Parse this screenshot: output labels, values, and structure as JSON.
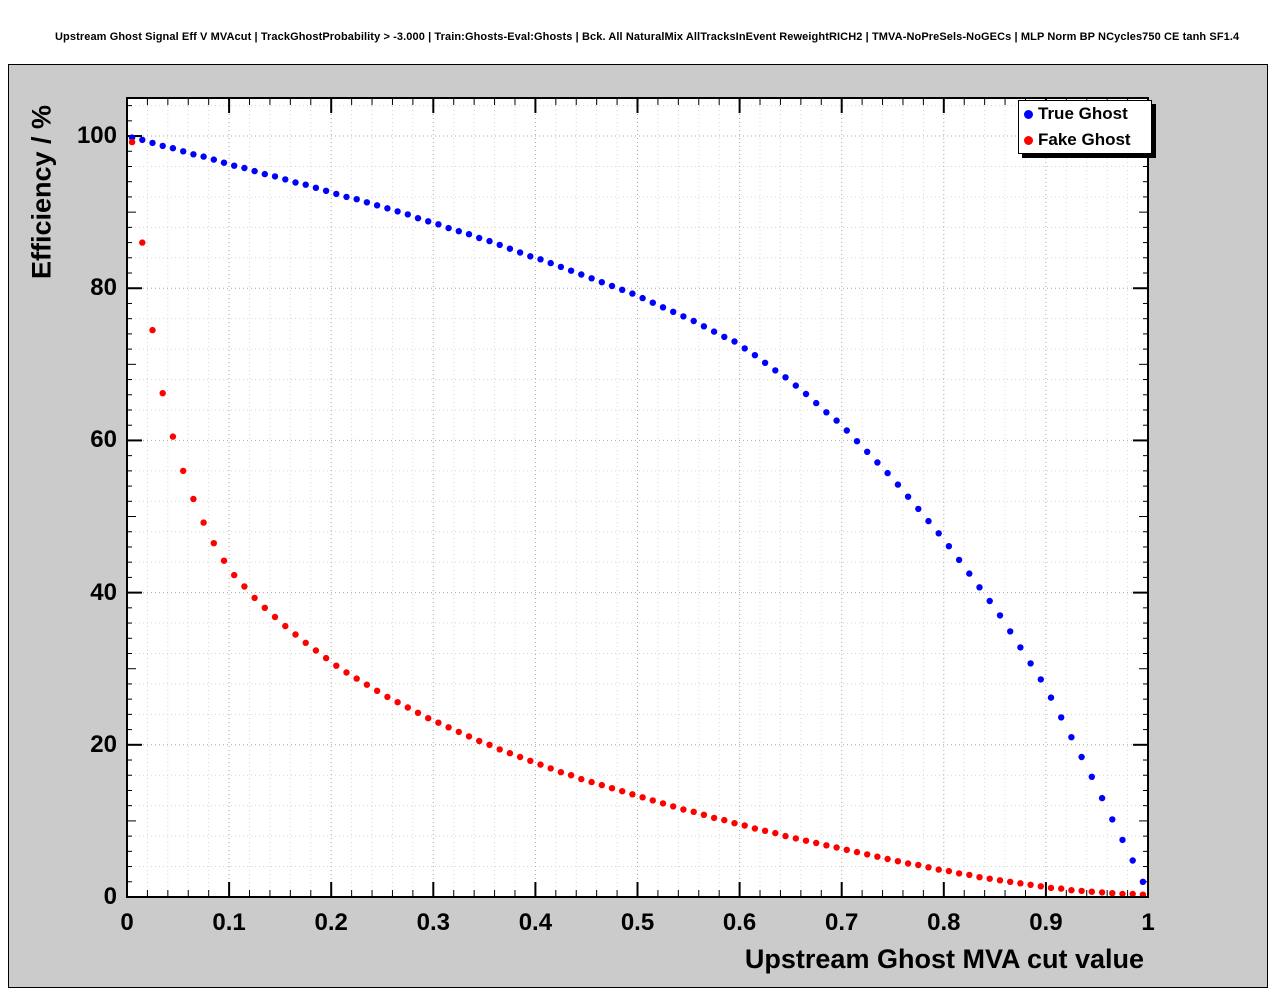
{
  "chart_data": {
    "type": "scatter",
    "title": "Upstream Ghost Signal Eff V MVAcut | TrackGhostProbability > -3.000 | Train:Ghosts-Eval:Ghosts | Bck. All NaturalMix AllTracksInEvent ReweightRICH2 | TMVA-NoPreSels-NoGECs | MLP Norm BP NCycles750 CE tanh SF1.4",
    "xlabel": "Upstream Ghost MVA cut value",
    "ylabel": "Efficiency / %",
    "xlim": [
      0,
      1
    ],
    "ylim": [
      0,
      105
    ],
    "grid": true,
    "legend_position": "top-right",
    "x_ticks": [
      0,
      0.1,
      0.2,
      0.3,
      0.4,
      0.5,
      0.6,
      0.7,
      0.8,
      0.9,
      1
    ],
    "x_tick_labels": [
      "0",
      "0.1",
      "0.2",
      "0.3",
      "0.4",
      "0.5",
      "0.6",
      "0.7",
      "0.8",
      "0.9",
      "1"
    ],
    "y_ticks": [
      0,
      20,
      40,
      60,
      80,
      100
    ],
    "y_tick_labels": [
      "0",
      "20",
      "40",
      "60",
      "80",
      "100"
    ],
    "colors": {
      "pad_background": "#cbcbcb",
      "frame_background": "#ffffff",
      "axis": "#000000",
      "grid_major": "#a8a8a8",
      "grid_minor": "#d6d6d6"
    },
    "x": [
      0.005,
      0.015,
      0.025,
      0.035,
      0.045,
      0.055,
      0.065,
      0.075,
      0.085,
      0.095,
      0.105,
      0.115,
      0.125,
      0.135,
      0.145,
      0.155,
      0.165,
      0.175,
      0.185,
      0.195,
      0.205,
      0.215,
      0.225,
      0.235,
      0.245,
      0.255,
      0.265,
      0.275,
      0.285,
      0.295,
      0.305,
      0.315,
      0.325,
      0.335,
      0.345,
      0.355,
      0.365,
      0.375,
      0.385,
      0.395,
      0.405,
      0.415,
      0.425,
      0.435,
      0.445,
      0.455,
      0.465,
      0.475,
      0.485,
      0.495,
      0.505,
      0.515,
      0.525,
      0.535,
      0.545,
      0.555,
      0.565,
      0.575,
      0.585,
      0.595,
      0.605,
      0.615,
      0.625,
      0.635,
      0.645,
      0.655,
      0.665,
      0.675,
      0.685,
      0.695,
      0.705,
      0.715,
      0.725,
      0.735,
      0.745,
      0.755,
      0.765,
      0.775,
      0.785,
      0.795,
      0.805,
      0.815,
      0.825,
      0.835,
      0.845,
      0.855,
      0.865,
      0.875,
      0.885,
      0.895,
      0.905,
      0.915,
      0.925,
      0.935,
      0.945,
      0.955,
      0.965,
      0.975,
      0.985,
      0.995
    ],
    "series": [
      {
        "name": "True Ghost",
        "color": "#0000ff",
        "y": [
          99.8,
          99.5,
          99.1,
          98.7,
          98.4,
          98.0,
          97.6,
          97.3,
          96.9,
          96.5,
          96.1,
          95.8,
          95.4,
          95.0,
          94.7,
          94.3,
          93.9,
          93.6,
          93.2,
          92.8,
          92.4,
          92.0,
          91.7,
          91.3,
          90.9,
          90.5,
          90.1,
          89.7,
          89.2,
          88.8,
          88.4,
          87.9,
          87.5,
          87.1,
          86.6,
          86.2,
          85.7,
          85.2,
          84.7,
          84.2,
          83.8,
          83.3,
          82.8,
          82.3,
          81.8,
          81.3,
          80.8,
          80.3,
          79.8,
          79.3,
          78.7,
          78.1,
          77.5,
          76.9,
          76.3,
          75.7,
          75.0,
          74.3,
          73.6,
          73.0,
          72.1,
          71.2,
          70.2,
          69.2,
          68.3,
          67.2,
          66.1,
          64.9,
          63.7,
          62.6,
          61.3,
          59.9,
          58.5,
          57.1,
          55.7,
          54.2,
          52.6,
          51.0,
          49.4,
          47.8,
          46.1,
          44.3,
          42.5,
          40.7,
          38.9,
          37.0,
          34.9,
          32.8,
          30.7,
          28.6,
          26.2,
          23.6,
          21.0,
          18.4,
          15.8,
          13.0,
          10.2,
          7.5,
          4.8,
          2.0
        ]
      },
      {
        "name": "Fake Ghost",
        "color": "#ff0000",
        "y": [
          99.2,
          86.0,
          74.5,
          66.2,
          60.5,
          56.0,
          52.3,
          49.2,
          46.5,
          44.2,
          42.3,
          40.8,
          39.3,
          38.0,
          36.8,
          35.6,
          34.5,
          33.4,
          32.4,
          31.4,
          30.4,
          29.5,
          28.7,
          27.9,
          27.1,
          26.3,
          25.6,
          24.9,
          24.2,
          23.5,
          22.9,
          22.3,
          21.7,
          21.1,
          20.5,
          20.0,
          19.4,
          18.9,
          18.4,
          17.9,
          17.4,
          16.9,
          16.4,
          16.0,
          15.5,
          15.1,
          14.7,
          14.3,
          13.9,
          13.5,
          13.1,
          12.7,
          12.3,
          11.9,
          11.5,
          11.2,
          10.8,
          10.4,
          10.1,
          9.7,
          9.4,
          9.0,
          8.7,
          8.4,
          8.0,
          7.7,
          7.4,
          7.1,
          6.8,
          6.5,
          6.2,
          5.9,
          5.6,
          5.3,
          5.0,
          4.7,
          4.4,
          4.2,
          3.9,
          3.6,
          3.4,
          3.1,
          2.9,
          2.6,
          2.4,
          2.2,
          2.0,
          1.8,
          1.6,
          1.4,
          1.2,
          1.1,
          0.9,
          0.8,
          0.7,
          0.6,
          0.5,
          0.4,
          0.4,
          0.3
        ]
      }
    ]
  }
}
